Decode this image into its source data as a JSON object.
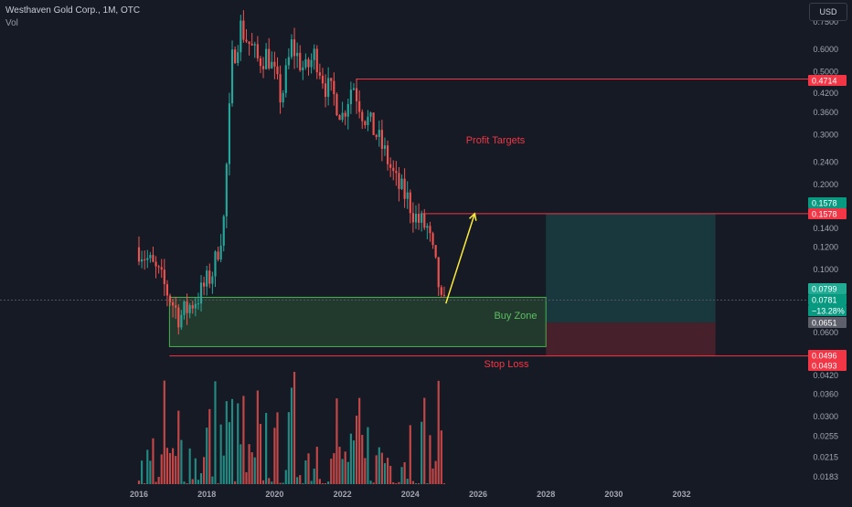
{
  "header": {
    "title": "Westhaven Gold Corp., 1M, OTC",
    "volume_label": "Vol",
    "currency_button": "USD"
  },
  "annotations": {
    "profit_targets": "Profit Targets",
    "buy_zone": "Buy Zone",
    "stop_loss": "Stop Loss"
  },
  "colors": {
    "background": "#161a25",
    "up": "#26a69a",
    "down": "#ef5350",
    "target_line": "#f23645",
    "buy_zone_fill": "rgba(76,175,80,0.22)",
    "buy_zone_border": "#4caf50",
    "profit_fill": "rgba(38,166,154,0.22)",
    "loss_fill": "rgba(242,54,69,0.22)",
    "arrow": "#ffeb3b",
    "axis_text": "#a3a6af"
  },
  "chart_data": {
    "type": "candlestick",
    "title": "Westhaven Gold Corp., 1M, OTC",
    "price_scale": "log",
    "y_ticks": [
      "0.7500",
      "0.6000",
      "0.5000",
      "0.4200",
      "0.3600",
      "0.3000",
      "0.2400",
      "0.2000",
      "0.1400",
      "0.1200",
      "0.1000",
      "0.0600",
      "0.0420",
      "0.0360",
      "0.0300",
      "0.0255",
      "0.0215",
      "0.0183"
    ],
    "x_ticks": [
      "2016",
      "2018",
      "2020",
      "2022",
      "2024",
      "2026",
      "2028",
      "2030",
      "2032"
    ],
    "price_labels": [
      {
        "text": "0.4714",
        "style": "red"
      },
      {
        "text": "0.1578",
        "style": "teal"
      },
      {
        "text": "0.1578",
        "style": "red"
      },
      {
        "text": "0.0799",
        "style": "green"
      },
      {
        "text": "0.0781",
        "style": "teal"
      },
      {
        "text": "−13.28%",
        "style": "teal"
      },
      {
        "text": "0.0651",
        "style": "gray"
      },
      {
        "text": "0.0496",
        "style": "red"
      },
      {
        "text": "0.0493",
        "style": "red"
      }
    ],
    "levels": {
      "target_1": 0.4714,
      "target_2": 0.1578,
      "buy_zone_top": 0.0799,
      "buy_zone_bottom": 0.0535,
      "last_price": 0.0781,
      "change_percent": -13.28,
      "entry": 0.0651,
      "stop_loss": 0.0496
    },
    "anchors": [
      {
        "date": 2016.0,
        "price": 0.12
      },
      {
        "date": 2016.6,
        "price": 0.095
      },
      {
        "date": 2017.2,
        "price": 0.068
      },
      {
        "date": 2017.8,
        "price": 0.082
      },
      {
        "date": 2018.2,
        "price": 0.1
      },
      {
        "date": 2018.5,
        "price": 0.15
      },
      {
        "date": 2018.75,
        "price": 0.55
      },
      {
        "date": 2019.0,
        "price": 0.72
      },
      {
        "date": 2019.5,
        "price": 0.55
      },
      {
        "date": 2019.8,
        "price": 0.58
      },
      {
        "date": 2020.2,
        "price": 0.4
      },
      {
        "date": 2020.5,
        "price": 0.62
      },
      {
        "date": 2020.9,
        "price": 0.5
      },
      {
        "date": 2021.2,
        "price": 0.58
      },
      {
        "date": 2021.5,
        "price": 0.45
      },
      {
        "date": 2021.8,
        "price": 0.4
      },
      {
        "date": 2022.0,
        "price": 0.35
      },
      {
        "date": 2022.3,
        "price": 0.46
      },
      {
        "date": 2022.6,
        "price": 0.36
      },
      {
        "date": 2023.0,
        "price": 0.3
      },
      {
        "date": 2023.3,
        "price": 0.25
      },
      {
        "date": 2023.6,
        "price": 0.2
      },
      {
        "date": 2023.9,
        "price": 0.18
      },
      {
        "date": 2024.2,
        "price": 0.15
      },
      {
        "date": 2024.5,
        "price": 0.14
      },
      {
        "date": 2024.8,
        "price": 0.095
      },
      {
        "date": 2024.95,
        "price": 0.07
      },
      {
        "date": 2025.05,
        "price": 0.078
      }
    ],
    "volume_range": [
      0.02,
      1.0
    ],
    "arrow": {
      "from": {
        "date": 2025.05,
        "price": 0.076
      },
      "to": {
        "date": 2025.9,
        "price": 0.1578
      }
    }
  }
}
